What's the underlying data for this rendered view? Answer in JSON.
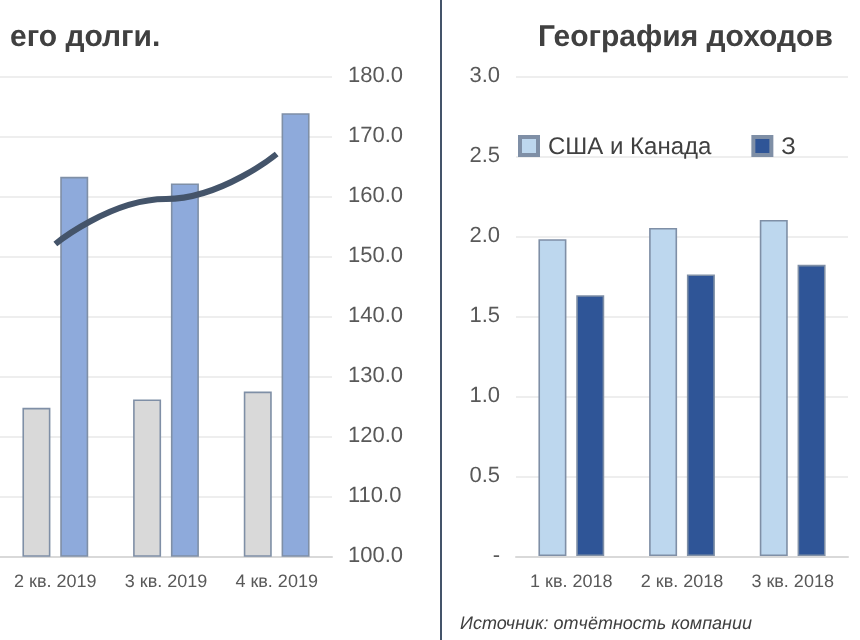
{
  "chart_data": [
    {
      "type": "bar",
      "title": "его долги.",
      "categories": [
        "2 кв. 2019",
        "3 кв. 2019",
        "4 кв. 2019"
      ],
      "series": [
        {
          "color": "#d9d9d9",
          "values": [
            124.7,
            126.1,
            127.4
          ],
          "axis": "y2"
        },
        {
          "color": "#8eaadb",
          "values": [
            163.2,
            162.1,
            173.8
          ],
          "axis": "y2"
        },
        {
          "type": "line",
          "color": "#44546a",
          "values": [
            152,
            159.5,
            167
          ],
          "axis": "y2"
        }
      ],
      "y2lim": [
        100,
        180
      ],
      "y2ticks": [
        {
          "value": 100,
          "label": "100.0"
        },
        {
          "value": 110,
          "label": "110.0"
        },
        {
          "value": 120,
          "label": "120.0"
        },
        {
          "value": 130,
          "label": "130.0"
        },
        {
          "value": 140,
          "label": "140.0"
        },
        {
          "value": 150,
          "label": "150.0"
        },
        {
          "value": 160,
          "label": "160.0"
        },
        {
          "value": 170,
          "label": "170.0"
        },
        {
          "value": 180,
          "label": "180.0"
        }
      ],
      "grid": "y",
      "marker": "none",
      "legend": false
    },
    {
      "type": "bar",
      "title": "География доходов",
      "categories": [
        "1 кв. 2018",
        "2 кв. 2018",
        "3 кв. 2018"
      ],
      "series": [
        {
          "name": "США и Канада",
          "color": "#bdd7ee",
          "values": [
            1.98,
            2.05,
            2.1
          ]
        },
        {
          "name": "З",
          "color": "#2f5597",
          "values": [
            1.63,
            1.76,
            1.82
          ]
        }
      ],
      "ylim": [
        0,
        3
      ],
      "yticks": [
        {
          "value": 0,
          "label": "-"
        },
        {
          "value": 0.5,
          "label": "0.5"
        },
        {
          "value": 1,
          "label": "1.0"
        },
        {
          "value": 1.5,
          "label": "1.5"
        },
        {
          "value": 2,
          "label": "2.0"
        },
        {
          "value": 2.5,
          "label": "2.5"
        },
        {
          "value": 3,
          "label": "3.0"
        }
      ],
      "grid": "y",
      "legend": "top",
      "annotations": [
        "Источник: отчётность компании"
      ]
    }
  ]
}
